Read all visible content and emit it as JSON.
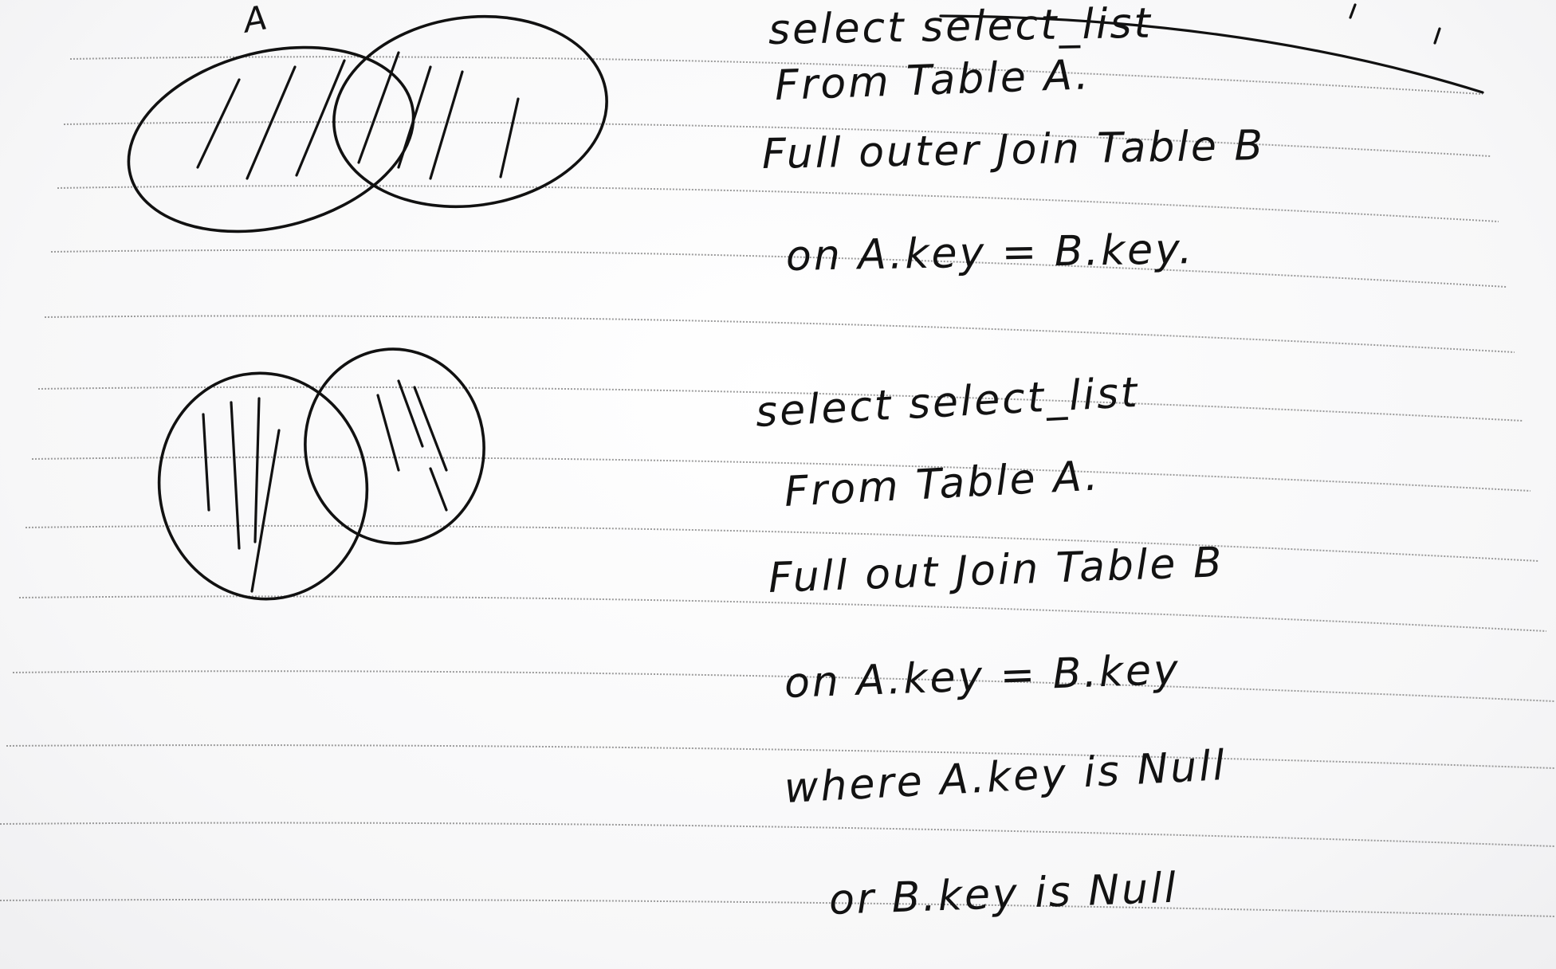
{
  "note": {
    "query_full_outer_join": {
      "venn_label": "A",
      "lines": [
        "select select_list",
        "From Table A.",
        "Full outer Join Table B",
        "on A.key = B.key."
      ]
    },
    "query_full_outer_exclusive": {
      "lines": [
        "select select_list",
        "From Table A.",
        "Full out Join Table B",
        "on A.key = B.key",
        "where A.key is Null",
        "or B.key is Null"
      ]
    }
  }
}
